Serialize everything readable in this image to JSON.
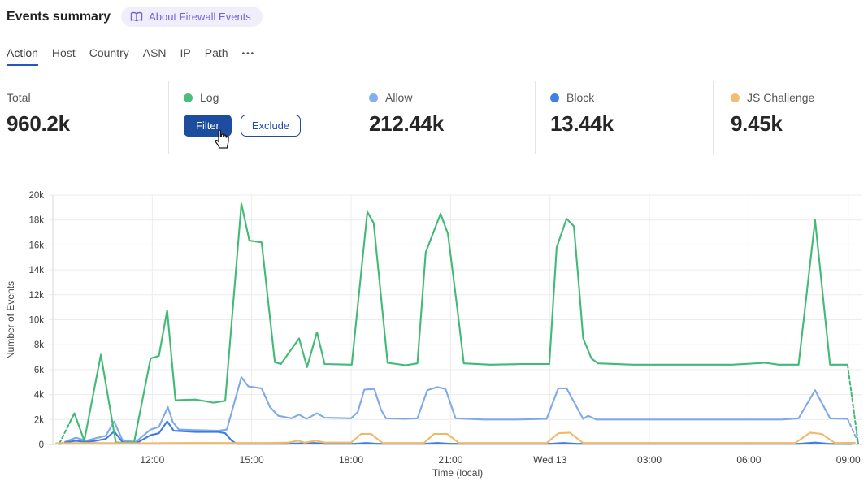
{
  "header": {
    "title": "Events summary",
    "about_badge": "About Firewall Events"
  },
  "tabs": {
    "items": [
      {
        "label": "Action",
        "active": true
      },
      {
        "label": "Host",
        "active": false
      },
      {
        "label": "Country",
        "active": false
      },
      {
        "label": "ASN",
        "active": false
      },
      {
        "label": "IP",
        "active": false
      },
      {
        "label": "Path",
        "active": false
      }
    ],
    "more_label": "•••"
  },
  "stats": {
    "total": {
      "label": "Total",
      "value": "960.2k"
    },
    "log": {
      "label": "Log",
      "filter_label": "Filter",
      "exclude_label": "Exclude"
    },
    "allow": {
      "label": "Allow",
      "value": "212.44k"
    },
    "block": {
      "label": "Block",
      "value": "13.44k"
    },
    "js_challenge": {
      "label": "JS Challenge",
      "value": "9.45k"
    }
  },
  "colors": {
    "log_dot": "#4cbd7c",
    "allow_dot": "#85aef2",
    "block_dot": "#3f7fe6",
    "js_challenge_dot": "#f2bc72",
    "button_blue": "#1d4d9f",
    "tab_underline": "#2456c4",
    "badge_bg": "#f1eefb",
    "badge_text": "#6d62d8"
  },
  "chart_data": {
    "type": "line",
    "xlabel": "Time (local)",
    "ylabel": "Number of Events",
    "x_unit": "hours since 09:00 Tue (local)",
    "value_unit": "thousands of events",
    "ylim": [
      0,
      20
    ],
    "grid": true,
    "legend_position": "stat-cards-above",
    "x_ticks": [
      {
        "h": 3,
        "label": "12:00"
      },
      {
        "h": 6,
        "label": "15:00"
      },
      {
        "h": 9,
        "label": "18:00"
      },
      {
        "h": 12,
        "label": "21:00"
      },
      {
        "h": 15,
        "label": "Wed 13"
      },
      {
        "h": 18,
        "label": "03:00"
      },
      {
        "h": 21,
        "label": "06:00"
      },
      {
        "h": 24,
        "label": "09:00"
      }
    ],
    "y_ticks": [
      {
        "v": 0,
        "label": "0"
      },
      {
        "v": 2,
        "label": "2k"
      },
      {
        "v": 4,
        "label": "4k"
      },
      {
        "v": 6,
        "label": "6k"
      },
      {
        "v": 8,
        "label": "8k"
      },
      {
        "v": 10,
        "label": "10k"
      },
      {
        "v": 12,
        "label": "12k"
      },
      {
        "v": 14,
        "label": "14k"
      },
      {
        "v": 16,
        "label": "16k"
      },
      {
        "v": 18,
        "label": "18k"
      },
      {
        "v": 20,
        "label": "20k"
      }
    ],
    "series": [
      {
        "key": "log",
        "name": "Log",
        "color": "#41ba75",
        "dash_lead": [
          [
            0.2,
            0.1
          ],
          [
            0.5,
            1.7
          ]
        ],
        "points": [
          [
            0.5,
            1.7
          ],
          [
            0.65,
            2.5
          ],
          [
            0.95,
            0.3
          ],
          [
            1.45,
            7.2
          ],
          [
            1.9,
            0.15
          ],
          [
            2.45,
            0.15
          ],
          [
            2.95,
            6.9
          ],
          [
            3.2,
            7.1
          ],
          [
            3.45,
            10.75
          ],
          [
            3.7,
            3.55
          ],
          [
            4.3,
            3.6
          ],
          [
            4.85,
            3.35
          ],
          [
            5.2,
            3.5
          ],
          [
            5.69,
            19.3
          ],
          [
            5.93,
            16.35
          ],
          [
            6.3,
            16.2
          ],
          [
            6.7,
            6.6
          ],
          [
            6.88,
            6.45
          ],
          [
            7.43,
            8.5
          ],
          [
            7.67,
            6.2
          ],
          [
            7.97,
            9.0
          ],
          [
            8.2,
            6.45
          ],
          [
            9.02,
            6.4
          ],
          [
            9.49,
            18.65
          ],
          [
            9.68,
            17.75
          ],
          [
            10.1,
            6.55
          ],
          [
            10.65,
            6.35
          ],
          [
            11.0,
            6.5
          ],
          [
            11.25,
            15.4
          ],
          [
            11.7,
            18.5
          ],
          [
            11.92,
            16.9
          ],
          [
            12.2,
            11.0
          ],
          [
            12.4,
            6.5
          ],
          [
            13.2,
            6.4
          ],
          [
            14.2,
            6.45
          ],
          [
            14.98,
            6.45
          ],
          [
            15.2,
            15.8
          ],
          [
            15.5,
            18.1
          ],
          [
            15.72,
            17.5
          ],
          [
            15.88,
            12.5
          ],
          [
            16.0,
            8.5
          ],
          [
            16.25,
            6.9
          ],
          [
            16.45,
            6.5
          ],
          [
            17.5,
            6.4
          ],
          [
            19.0,
            6.4
          ],
          [
            20.5,
            6.4
          ],
          [
            21.5,
            6.55
          ],
          [
            21.9,
            6.4
          ],
          [
            22.5,
            6.4
          ],
          [
            23.0,
            18.0
          ],
          [
            23.45,
            6.4
          ],
          [
            23.98,
            6.4
          ]
        ],
        "dash_tail": [
          [
            23.98,
            6.4
          ],
          [
            24.3,
            0.05
          ]
        ]
      },
      {
        "key": "allow",
        "name": "Allow",
        "color": "#7fa9eb",
        "dash_lead": [
          [
            0.2,
            0.05
          ],
          [
            0.45,
            0.3
          ]
        ],
        "points": [
          [
            0.45,
            0.3
          ],
          [
            0.7,
            0.55
          ],
          [
            1.0,
            0.3
          ],
          [
            1.3,
            0.5
          ],
          [
            1.6,
            0.7
          ],
          [
            1.85,
            1.85
          ],
          [
            2.1,
            0.35
          ],
          [
            2.5,
            0.2
          ],
          [
            2.95,
            1.2
          ],
          [
            3.2,
            1.4
          ],
          [
            3.47,
            3.0
          ],
          [
            3.62,
            1.8
          ],
          [
            3.8,
            1.2
          ],
          [
            4.3,
            1.15
          ],
          [
            5.0,
            1.1
          ],
          [
            5.25,
            1.2
          ],
          [
            5.69,
            5.4
          ],
          [
            5.9,
            4.65
          ],
          [
            6.3,
            4.5
          ],
          [
            6.55,
            3.0
          ],
          [
            6.8,
            2.3
          ],
          [
            7.2,
            2.1
          ],
          [
            7.43,
            2.4
          ],
          [
            7.65,
            2.05
          ],
          [
            7.97,
            2.5
          ],
          [
            8.2,
            2.15
          ],
          [
            9.0,
            2.1
          ],
          [
            9.2,
            2.6
          ],
          [
            9.4,
            4.4
          ],
          [
            9.7,
            4.45
          ],
          [
            9.9,
            2.8
          ],
          [
            10.05,
            2.1
          ],
          [
            10.6,
            2.05
          ],
          [
            11.0,
            2.1
          ],
          [
            11.3,
            4.35
          ],
          [
            11.6,
            4.6
          ],
          [
            11.85,
            4.45
          ],
          [
            12.15,
            2.1
          ],
          [
            13.0,
            2.0
          ],
          [
            14.0,
            2.0
          ],
          [
            14.9,
            2.05
          ],
          [
            15.25,
            4.5
          ],
          [
            15.5,
            4.5
          ],
          [
            16.0,
            2.05
          ],
          [
            16.15,
            2.3
          ],
          [
            16.4,
            2.0
          ],
          [
            18.0,
            2.0
          ],
          [
            20.0,
            2.0
          ],
          [
            22.0,
            2.0
          ],
          [
            22.5,
            2.1
          ],
          [
            23.0,
            4.35
          ],
          [
            23.45,
            2.1
          ],
          [
            23.98,
            2.05
          ]
        ],
        "dash_tail": [
          [
            23.98,
            2.05
          ],
          [
            24.32,
            0.05
          ]
        ]
      },
      {
        "key": "block",
        "name": "Block",
        "color": "#3b7de0",
        "dash_lead": [
          [
            0.2,
            0.03
          ],
          [
            0.45,
            0.2
          ]
        ],
        "points": [
          [
            0.45,
            0.2
          ],
          [
            0.7,
            0.3
          ],
          [
            1.0,
            0.2
          ],
          [
            1.3,
            0.3
          ],
          [
            1.6,
            0.45
          ],
          [
            1.85,
            1.05
          ],
          [
            2.1,
            0.2
          ],
          [
            2.5,
            0.08
          ],
          [
            2.95,
            0.75
          ],
          [
            3.2,
            0.9
          ],
          [
            3.45,
            1.85
          ],
          [
            3.65,
            1.1
          ],
          [
            4.3,
            1.0
          ],
          [
            5.0,
            1.0
          ],
          [
            5.2,
            0.9
          ],
          [
            5.4,
            0.3
          ],
          [
            5.55,
            0.05
          ],
          [
            7.0,
            0.05
          ],
          [
            7.9,
            0.12
          ],
          [
            8.2,
            0.05
          ],
          [
            9.1,
            0.05
          ],
          [
            9.45,
            0.12
          ],
          [
            9.8,
            0.05
          ],
          [
            11.2,
            0.05
          ],
          [
            11.6,
            0.12
          ],
          [
            12.0,
            0.05
          ],
          [
            15.0,
            0.05
          ],
          [
            15.4,
            0.12
          ],
          [
            15.8,
            0.05
          ],
          [
            22.5,
            0.05
          ],
          [
            23.0,
            0.15
          ],
          [
            23.4,
            0.05
          ],
          [
            24.1,
            0.04
          ]
        ]
      },
      {
        "key": "js-challenge",
        "name": "JS Challenge",
        "color": "#f0b968",
        "points": [
          [
            0.1,
            0.1
          ],
          [
            1.0,
            0.12
          ],
          [
            2.5,
            0.1
          ],
          [
            4.0,
            0.12
          ],
          [
            6.5,
            0.12
          ],
          [
            7.1,
            0.15
          ],
          [
            7.4,
            0.3
          ],
          [
            7.6,
            0.15
          ],
          [
            7.95,
            0.3
          ],
          [
            8.2,
            0.15
          ],
          [
            9.0,
            0.15
          ],
          [
            9.3,
            0.85
          ],
          [
            9.6,
            0.85
          ],
          [
            9.95,
            0.12
          ],
          [
            11.2,
            0.12
          ],
          [
            11.5,
            0.85
          ],
          [
            11.9,
            0.85
          ],
          [
            12.25,
            0.12
          ],
          [
            14.9,
            0.12
          ],
          [
            15.25,
            0.9
          ],
          [
            15.6,
            0.95
          ],
          [
            16.0,
            0.12
          ],
          [
            22.4,
            0.12
          ],
          [
            22.85,
            0.95
          ],
          [
            23.2,
            0.85
          ],
          [
            23.6,
            0.12
          ],
          [
            24.2,
            0.14
          ]
        ]
      }
    ]
  }
}
